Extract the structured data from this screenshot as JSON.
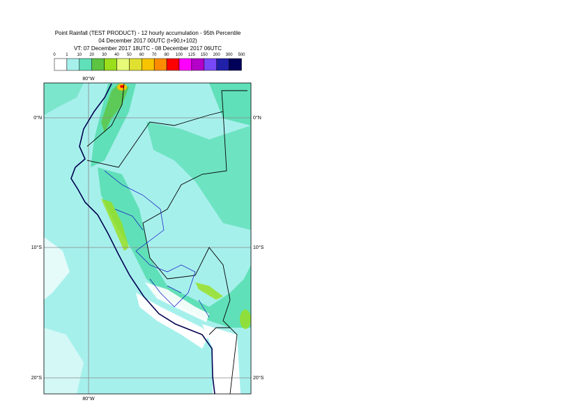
{
  "header": {
    "title": "Point Rainfall (TEST PRODUCT) - 12 hourly accumulation - 95th Percentile",
    "base_time": "04 December 2017 00UTC (t+90,t+102)",
    "valid_time": "VT: 07 December 2017 18UTC - 08 December 2017 06UTC"
  },
  "legend": {
    "labels": [
      "0",
      "1",
      "10",
      "20",
      "30",
      "40",
      "50",
      "60",
      "70",
      "80",
      "100",
      "125",
      "150",
      "200",
      "300",
      "500"
    ],
    "colors": [
      "#ffffff",
      "#a6f0ec",
      "#60e0b8",
      "#5cc440",
      "#9ade1c",
      "#e6fa78",
      "#e0e030",
      "#f8c400",
      "#ff8c00",
      "#ff0000",
      "#ff00ff",
      "#b400c8",
      "#7848f8",
      "#2020a8",
      "#000058"
    ]
  },
  "map": {
    "lon_labels": [
      "80°W"
    ],
    "lat_labels": [
      "0°N",
      "10°S",
      "20°S"
    ]
  }
}
